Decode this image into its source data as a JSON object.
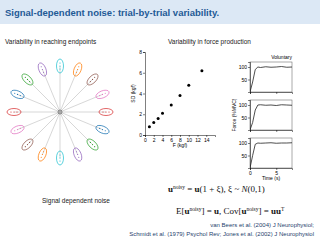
{
  "title": "Signal-dependent noise: trial-by-trial variability.",
  "panels": {
    "reaching": {
      "label": "Variability in reaching endpoints"
    },
    "force": {
      "label": "Variability in force production"
    }
  },
  "caption": "Signal dependent noise",
  "equations": [
    {
      "segments": [
        {
          "text": "u",
          "style": "bold"
        },
        {
          "text": "noisy",
          "style": "sup"
        },
        {
          "text": " = ",
          "style": "plain"
        },
        {
          "text": "u",
          "style": "bold"
        },
        {
          "text": "(1 + ξ),   ξ ~ ",
          "style": "plain"
        },
        {
          "text": "N",
          "style": "italic"
        },
        {
          "text": "(0,1)",
          "style": "plain"
        }
      ]
    },
    {
      "segments": [
        {
          "text": "E[",
          "style": "plain"
        },
        {
          "text": "u",
          "style": "bold"
        },
        {
          "text": "noisy",
          "style": "sup"
        },
        {
          "text": "] = ",
          "style": "plain"
        },
        {
          "text": "u",
          "style": "bold"
        },
        {
          "text": ",  Cov[",
          "style": "plain"
        },
        {
          "text": "u",
          "style": "bold"
        },
        {
          "text": "noisy",
          "style": "sup"
        },
        {
          "text": "] = ",
          "style": "plain"
        },
        {
          "text": "uu",
          "style": "bold"
        },
        {
          "text": "T",
          "style": "sup"
        }
      ]
    }
  ],
  "references": [
    "van Beers et al. (2004) J Neurophysiol;",
    "Schmidt et al. (1979) Psychol Rev; Jones et al. (2002) J Neurophysiol"
  ],
  "chart_data": [
    {
      "type": "scatter",
      "x": [
        1,
        2,
        3,
        4,
        6,
        8,
        10,
        13
      ],
      "values": [
        0.8,
        1.2,
        1.6,
        2.1,
        2.9,
        3.8,
        4.8,
        6.2
      ],
      "xlim": [
        0,
        16
      ],
      "ylim": [
        0,
        8
      ],
      "xticks": [
        0,
        2,
        4,
        6,
        8,
        10,
        12,
        14
      ],
      "yticks": [
        0,
        2,
        4,
        6,
        8
      ],
      "xlabel": "F (kgf)",
      "ylabel": "SD (kgf)",
      "color": "#000000",
      "marker": "circle"
    },
    {
      "type": "line",
      "title": "Voluntary",
      "x": [
        0,
        0.5,
        1,
        1.5,
        2,
        3,
        4,
        5,
        6,
        7,
        8
      ],
      "values": [
        0,
        40,
        90,
        100,
        98,
        101,
        99,
        100,
        102,
        99,
        100
      ],
      "xlim": [
        0,
        8
      ],
      "ylim": [
        0,
        120
      ],
      "xticks": [
        0,
        5
      ],
      "yticks": [
        50,
        100
      ],
      "tick_labels": "y",
      "color": "#222222"
    },
    {
      "type": "line",
      "x": [
        0,
        0.5,
        1,
        1.5,
        2,
        3,
        4,
        5,
        6,
        7,
        8
      ],
      "values": [
        0,
        30,
        80,
        100,
        101,
        99,
        100,
        98,
        101,
        100,
        99
      ],
      "xlim": [
        0,
        8
      ],
      "ylim": [
        0,
        120
      ],
      "xticks": [
        0,
        5
      ],
      "yticks": [
        50,
        100
      ],
      "tick_labels": "y",
      "ylabel": "Force (%MVC)",
      "color": "#222222"
    },
    {
      "type": "line",
      "x": [
        0,
        0.5,
        1,
        1.5,
        2,
        3,
        4,
        5,
        6,
        7,
        8
      ],
      "values": [
        0,
        50,
        95,
        100,
        99,
        100,
        101,
        99,
        100,
        100,
        101
      ],
      "xlim": [
        0,
        8
      ],
      "ylim": [
        0,
        120
      ],
      "xticks": [
        0,
        5
      ],
      "yticks": [
        50,
        100
      ],
      "xlabel": "Time (s)",
      "color": "#222222"
    }
  ]
}
